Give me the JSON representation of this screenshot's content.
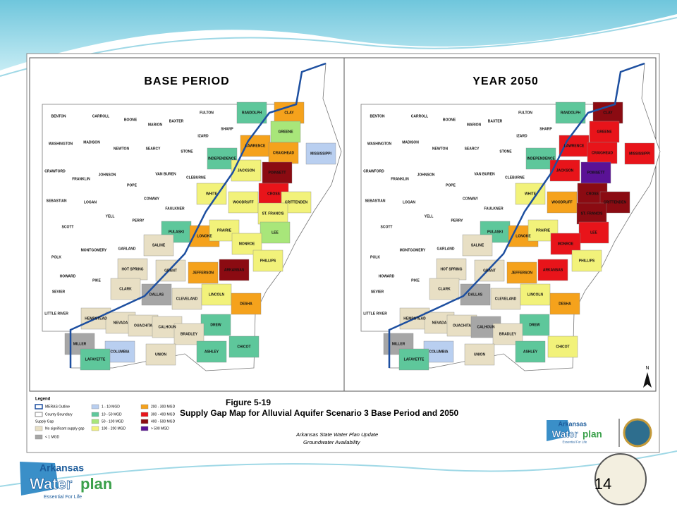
{
  "counties": [
    "BENTON",
    "CARROLL",
    "BOONE",
    "MARION",
    "BAXTER",
    "FULTON",
    "RANDOLPH",
    "CLAY",
    "SHARP",
    "IZARD",
    "GREENE",
    "WASHINGTON",
    "MADISON",
    "NEWTON",
    "SEARCY",
    "STONE",
    "INDEPENDENCE",
    "LAWRENCE",
    "CRAIGHEAD",
    "MISSISSIPPI",
    "CRAWFORD",
    "FRANKLIN",
    "JOHNSON",
    "VAN BUREN",
    "CLEBURNE",
    "JACKSON",
    "POINSETT",
    "POPE",
    "SEBASTIAN",
    "LOGAN",
    "CONWAY",
    "WHITE",
    "WOODRUFF",
    "CROSS",
    "CRITTENDEN",
    "YELL",
    "FAULKNER",
    "PERRY",
    "ST. FRANCIS",
    "SCOTT",
    "PULASKI",
    "LONOKE",
    "PRAIRIE",
    "LEE",
    "MONROE",
    "POLK",
    "MONTGOMERY",
    "GARLAND",
    "SALINE",
    "PHILLIPS",
    "HOT SPRING",
    "GRANT",
    "JEFFERSON",
    "ARKANSAS",
    "HOWARD",
    "PIKE",
    "CLARK",
    "DALLAS",
    "CLEVELAND",
    "LINCOLN",
    "DESHA",
    "SEVIER",
    "LITTLE RIVER",
    "HEMPSTEAD",
    "NEVADA",
    "OUACHITA",
    "CALHOUN",
    "DREW",
    "BRADLEY",
    "MILLER",
    "COLUMBIA",
    "UNION",
    "ASHLEY",
    "CHICOT",
    "LAFAYETTE"
  ],
  "maps": [
    {
      "title": "BASE PERIOD",
      "colors": [
        null,
        null,
        null,
        null,
        null,
        null,
        "#5ec79b",
        "#f5a21c",
        null,
        null,
        "#a8e67a",
        null,
        null,
        null,
        null,
        null,
        "#5ec79b",
        "#f5a21c",
        "#f5a21c",
        "#b9cff0",
        null,
        null,
        null,
        null,
        null,
        "#f2f27a",
        "#8b0b12",
        null,
        null,
        null,
        null,
        "#f2f27a",
        "#f2f27a",
        "#e8141a",
        "#f2f27a",
        null,
        null,
        null,
        "#f2f27a",
        null,
        "#5ec79b",
        "#f5a21c",
        "#f2f27a",
        "#a8e67a",
        "#f2f27a",
        null,
        null,
        null,
        "#e8dfc4",
        "#f2f27a",
        "#e8dfc4",
        "#e8dfc4",
        "#f5a21c",
        "#8b0b12",
        null,
        null,
        "#e8dfc4",
        "#a6a6a6",
        "#e8dfc4",
        "#f2f27a",
        "#f5a21c",
        null,
        null,
        "#e8dfc4",
        "#e8dfc4",
        "#e8dfc4",
        "#e8dfc4",
        "#5ec79b",
        "#e8dfc4",
        "#a6a6a6",
        "#b9cff0",
        "#e8dfc4",
        "#5ec79b",
        "#5ec79b",
        "#5ec79b"
      ]
    },
    {
      "title": "YEAR 2050",
      "colors": [
        null,
        null,
        null,
        null,
        null,
        null,
        "#5ec79b",
        "#8b0b12",
        null,
        null,
        "#e8141a",
        null,
        null,
        null,
        null,
        null,
        "#5ec79b",
        "#e8141a",
        "#e8141a",
        "#e8141a",
        null,
        null,
        null,
        null,
        null,
        "#e8141a",
        "#5a1296",
        null,
        null,
        null,
        null,
        "#f2f27a",
        "#f5a21c",
        "#8b0b12",
        "#8b0b12",
        null,
        null,
        null,
        "#8b0b12",
        null,
        "#5ec79b",
        "#f5a21c",
        "#f2f27a",
        "#e8141a",
        "#e8141a",
        null,
        null,
        null,
        "#e8dfc4",
        "#f2f27a",
        "#e8dfc4",
        "#e8dfc4",
        "#f5a21c",
        "#e8141a",
        null,
        null,
        "#e8dfc4",
        "#a6a6a6",
        "#e8dfc4",
        "#f2f27a",
        "#f5a21c",
        null,
        null,
        "#e8dfc4",
        "#e8dfc4",
        "#e8dfc4",
        "#a6a6a6",
        "#5ec79b",
        "#e8dfc4",
        "#a6a6a6",
        "#b9cff0",
        "#e8dfc4",
        "#5ec79b",
        "#f2f27a",
        "#5ec79b"
      ]
    }
  ],
  "north": "N",
  "legend": {
    "title": "Legend",
    "outline": "MERAS Outline",
    "boundary": "County Boundary",
    "heading": "Supply Gap",
    "classes": [
      {
        "label": "No significant supply gap",
        "color": "#e8dfc4"
      },
      {
        "label": "< 1 MGD",
        "color": "#a6a6a6"
      },
      {
        "label": "1 - 10 MGD",
        "color": "#b9cff0"
      },
      {
        "label": "10 - 50 MGD",
        "color": "#5ec79b"
      },
      {
        "label": "50 - 100 MGD",
        "color": "#a8e67a"
      },
      {
        "label": "100 - 200 MGD",
        "color": "#f2f27a"
      },
      {
        "label": "200 - 300 MGD",
        "color": "#f5a21c"
      },
      {
        "label": "300 - 400 MGD",
        "color": "#e8141a"
      },
      {
        "label": "400 - 500 MGD",
        "color": "#8b0b12"
      },
      {
        "label": "> 500 MGD",
        "color": "#5a1296"
      }
    ]
  },
  "figure": {
    "number": "Figure 5-19",
    "title": "Supply Gap Map for Alluvial Aquifer Scenario 3 Base Period and 2050",
    "source": "Arkansas State Water Plan Update",
    "subject": "Groundwater Availability"
  },
  "logo": {
    "name": "Arkansas",
    "word1": "Water",
    "word2": "plan",
    "tagline": "Essential For Life"
  },
  "page_number": "14"
}
